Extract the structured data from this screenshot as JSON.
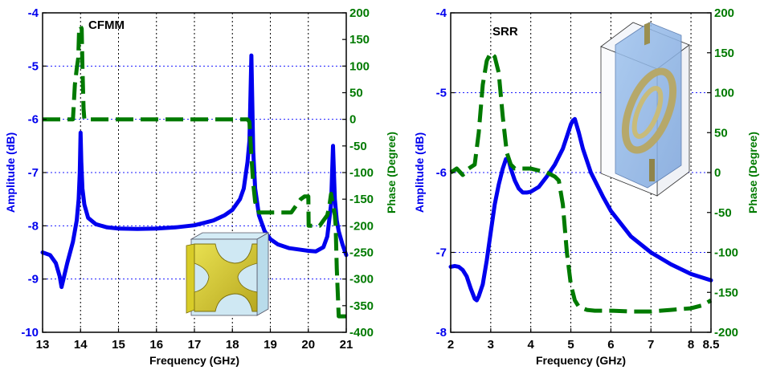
{
  "colors": {
    "amplitude": "#0000ee",
    "phase": "#007a00",
    "grid": "#000000",
    "blue_grid": "#1a1aff",
    "axis": "#000000"
  },
  "chart_data": [
    {
      "type": "line",
      "title": "CFMM",
      "xlabel": "Frequency (GHz)",
      "ylabel_left": "Amplitude (dB)",
      "ylabel_right": "Phase (Degree)",
      "xlim": [
        13,
        21
      ],
      "ylim_left": [
        -10,
        -4
      ],
      "ylim_right": [
        -400,
        200
      ],
      "x_ticks": [
        "13",
        "14",
        "15",
        "16",
        "17",
        "18",
        "19",
        "20",
        "21"
      ],
      "y_left_ticks": [
        "-4",
        "-5",
        "-6",
        "-7",
        "-8",
        "-9",
        "-10"
      ],
      "y_right_ticks": [
        "200",
        "150",
        "100",
        "50",
        "0",
        "-50",
        "-100",
        "-150",
        "-200",
        "-250",
        "-300",
        "-350",
        "-400"
      ],
      "grid": "dotted vertical and horizontal",
      "inset": "CFMM unit cell 3D model",
      "series": [
        {
          "role": "amplitude",
          "axis": "left",
          "style": "solid",
          "x": [
            13.0,
            13.2,
            13.35,
            13.45,
            13.5,
            13.55,
            13.65,
            13.8,
            13.9,
            13.95,
            13.98,
            14.0,
            14.02,
            14.05,
            14.1,
            14.2,
            14.4,
            14.7,
            15.0,
            15.5,
            16.0,
            16.5,
            17.0,
            17.5,
            17.8,
            18.0,
            18.2,
            18.3,
            18.4,
            18.45,
            18.5,
            18.55,
            18.6,
            18.7,
            18.85,
            19.0,
            19.2,
            19.5,
            19.8,
            20.0,
            20.2,
            20.4,
            20.5,
            20.6,
            20.65,
            20.7,
            20.75,
            20.8,
            20.9,
            21.0
          ],
          "y": [
            -8.5,
            -8.55,
            -8.7,
            -8.95,
            -9.15,
            -9.0,
            -8.7,
            -8.3,
            -7.9,
            -7.5,
            -7.0,
            -6.25,
            -6.8,
            -7.3,
            -7.6,
            -7.85,
            -7.97,
            -8.03,
            -8.05,
            -8.06,
            -8.05,
            -8.03,
            -7.99,
            -7.9,
            -7.8,
            -7.7,
            -7.5,
            -7.3,
            -6.8,
            -6.4,
            -4.8,
            -6.6,
            -7.3,
            -7.8,
            -8.1,
            -8.25,
            -8.35,
            -8.42,
            -8.45,
            -8.47,
            -8.48,
            -8.4,
            -8.2,
            -7.6,
            -6.5,
            -7.5,
            -7.9,
            -8.1,
            -8.35,
            -8.55
          ]
        },
        {
          "role": "phase",
          "axis": "right",
          "style": "dashed",
          "x": [
            13.0,
            13.7,
            13.8,
            13.85,
            13.9,
            13.94,
            13.96,
            14.0,
            14.03,
            14.05,
            14.08,
            14.1,
            14.5,
            15.0,
            16.0,
            17.0,
            18.0,
            18.4,
            18.45,
            18.5,
            18.55,
            18.6,
            18.7,
            18.9,
            19.0,
            19.05,
            19.5,
            19.55,
            19.7,
            19.8,
            19.9,
            20.0,
            20.01,
            20.05,
            20.2,
            20.3,
            20.4,
            20.5,
            20.55,
            20.6,
            20.65,
            20.7,
            20.72,
            20.75,
            20.8,
            21.0
          ],
          "y": [
            0,
            0,
            0,
            65,
            95,
            115,
            165,
            175,
            170,
            100,
            20,
            0,
            0,
            0,
            0,
            0,
            0,
            0,
            -5,
            -70,
            -120,
            -155,
            -175,
            -175,
            -175,
            -175,
            -175,
            -175,
            -160,
            -150,
            -145,
            -145,
            -200,
            -200,
            -200,
            -200,
            -190,
            -180,
            -165,
            -140,
            -160,
            -180,
            -200,
            -280,
            -370,
            -370
          ]
        }
      ]
    },
    {
      "type": "line",
      "title": "SRR",
      "xlabel": "Frequency (GHz)",
      "ylabel_left": "Amplitude (dB)",
      "ylabel_right": "Phase (Degree)",
      "xlim": [
        2,
        8.5
      ],
      "ylim_left": [
        -8,
        -4
      ],
      "ylim_right": [
        -200,
        200
      ],
      "x_ticks": [
        "2",
        "3",
        "4",
        "5",
        "6",
        "7",
        "8",
        "8.5"
      ],
      "y_left_ticks": [
        "-4",
        "-5",
        "-6",
        "-7",
        "-8"
      ],
      "y_right_ticks": [
        "200",
        "150",
        "100",
        "50",
        "0",
        "-50",
        "-100",
        "-150",
        "-200"
      ],
      "grid": "dotted vertical and horizontal",
      "inset": "SRR unit cell 3D model",
      "series": [
        {
          "role": "amplitude",
          "axis": "left",
          "style": "solid",
          "x": [
            2.0,
            2.1,
            2.2,
            2.3,
            2.4,
            2.5,
            2.6,
            2.65,
            2.7,
            2.8,
            2.9,
            3.0,
            3.1,
            3.2,
            3.3,
            3.38,
            3.45,
            3.5,
            3.6,
            3.7,
            3.8,
            3.9,
            4.0,
            4.2,
            4.4,
            4.6,
            4.8,
            4.9,
            5.0,
            5.05,
            5.1,
            5.2,
            5.3,
            5.5,
            5.8,
            6.0,
            6.5,
            7.0,
            7.5,
            8.0,
            8.5
          ],
          "y": [
            -7.18,
            -7.17,
            -7.18,
            -7.22,
            -7.3,
            -7.45,
            -7.58,
            -7.6,
            -7.55,
            -7.4,
            -7.1,
            -6.75,
            -6.4,
            -6.15,
            -5.95,
            -5.83,
            -5.85,
            -5.95,
            -6.1,
            -6.2,
            -6.25,
            -6.25,
            -6.24,
            -6.18,
            -6.05,
            -5.9,
            -5.7,
            -5.55,
            -5.4,
            -5.35,
            -5.33,
            -5.5,
            -5.7,
            -6.0,
            -6.3,
            -6.48,
            -6.8,
            -7.0,
            -7.15,
            -7.27,
            -7.35
          ]
        },
        {
          "role": "phase",
          "axis": "right",
          "style": "dashed",
          "x": [
            2.0,
            2.15,
            2.3,
            2.45,
            2.6,
            2.7,
            2.8,
            2.9,
            3.0,
            3.1,
            3.2,
            3.3,
            3.4,
            3.5,
            3.6,
            3.8,
            4.0,
            4.4,
            4.6,
            4.7,
            4.8,
            4.9,
            5.0,
            5.1,
            5.2,
            5.4,
            5.6,
            6.0,
            6.5,
            7.0,
            7.5,
            8.0,
            8.3,
            8.5
          ],
          "y": [
            0,
            5,
            -3,
            5,
            10,
            50,
            110,
            140,
            150,
            145,
            125,
            70,
            25,
            10,
            5,
            5,
            5,
            0,
            -5,
            -10,
            -40,
            -100,
            -140,
            -160,
            -168,
            -172,
            -173,
            -173,
            -174,
            -174,
            -172,
            -170,
            -166,
            -160
          ]
        }
      ]
    }
  ]
}
